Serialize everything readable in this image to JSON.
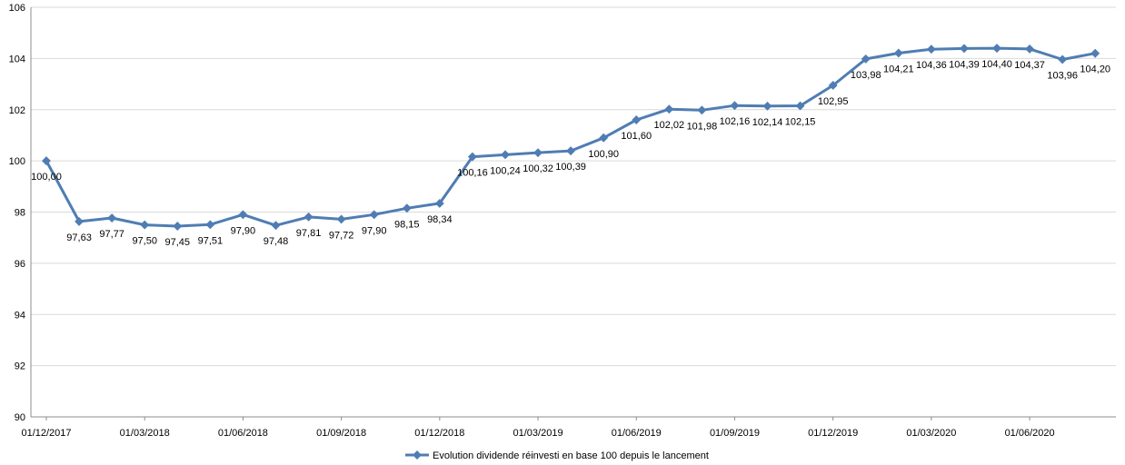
{
  "chart_data": {
    "type": "line",
    "title": "",
    "xlabel": "",
    "ylabel": "",
    "ylim": [
      90,
      106
    ],
    "y_ticks": [
      "90",
      "92",
      "94",
      "96",
      "98",
      "100",
      "102",
      "104",
      "106"
    ],
    "x_tick_labels": [
      "01/12/2017",
      "01/03/2018",
      "01/06/2018",
      "01/09/2018",
      "01/12/2018",
      "01/03/2019",
      "01/06/2019",
      "01/09/2019",
      "01/12/2019",
      "01/03/2020",
      "01/06/2020"
    ],
    "grid": "horizontal",
    "legend_position": "bottom",
    "line_color": "#4F7DB3",
    "x": [
      "2017-12-01",
      "2018-01-01",
      "2018-02-01",
      "2018-03-01",
      "2018-04-01",
      "2018-05-01",
      "2018-06-01",
      "2018-07-01",
      "2018-08-01",
      "2018-09-01",
      "2018-10-01",
      "2018-11-01",
      "2018-12-01",
      "2019-01-01",
      "2019-02-01",
      "2019-03-01",
      "2019-04-01",
      "2019-05-01",
      "2019-06-01",
      "2019-07-01",
      "2019-08-01",
      "2019-09-01",
      "2019-10-01",
      "2019-11-01",
      "2019-12-01",
      "2020-01-01",
      "2020-02-01",
      "2020-03-01",
      "2020-04-01",
      "2020-05-01",
      "2020-06-01",
      "2020-07-01",
      "2020-08-01"
    ],
    "series": [
      {
        "name": "Evolution dividende réinvesti en base 100 depuis le lancement",
        "values": [
          100.0,
          97.63,
          97.77,
          97.5,
          97.45,
          97.51,
          97.9,
          97.48,
          97.81,
          97.72,
          97.9,
          98.15,
          98.34,
          100.16,
          100.24,
          100.32,
          100.39,
          100.9,
          101.6,
          102.02,
          101.98,
          102.16,
          102.14,
          102.15,
          102.95,
          103.98,
          104.21,
          104.36,
          104.39,
          104.4,
          104.37,
          103.96,
          104.2
        ],
        "labels": [
          "100,00",
          "97,63",
          "97,77",
          "97,50",
          "97,45",
          "97,51",
          "97,90",
          "97,48",
          "97,81",
          "97,72",
          "97,90",
          "98,15",
          "98,34",
          "100,16",
          "100,24",
          "100,32",
          "100,39",
          "100,90",
          "101,60",
          "102,02",
          "101,98",
          "102,16",
          "102,14",
          "102,15",
          "102,95",
          "103,98",
          "104,21",
          "104,36",
          "104,39",
          "104,40",
          "104,37",
          "103,96",
          "104,20"
        ]
      }
    ]
  }
}
